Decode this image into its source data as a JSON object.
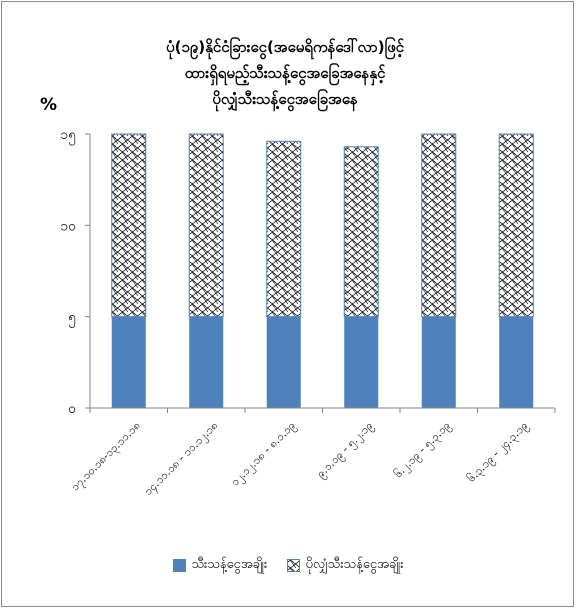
{
  "chart_data": {
    "type": "bar",
    "stacked": true,
    "title_lines": [
      "ပုံ(၁၉)နိုင်ငံခြားငွေ(အမေရိကန်ဒေါ်လာ)ဖြင့်",
      "ထားရှိရမည့်သီးသန့်ငွေအခြေအနေနှင့်",
      "ပိုလျှံသီးသန့်ငွေအခြေအနေ"
    ],
    "ylabel": "%",
    "ylim": [
      0,
      15
    ],
    "yticks": [
      "၀",
      "၅",
      "၁၀",
      "၁၅"
    ],
    "ytick_values": [
      0,
      5,
      10,
      15
    ],
    "categories": [
      "၁၇.၁၀.၁၈-၁၃.၁၁.၁၈",
      "၁၄.၁၁.၁၈ - ၁၁.၁၂.၁၈",
      "၁၂.၁၂.၁၈ - ၈.၁.၁၉",
      "၉.၁.၁၉ - ၅.၂.၁၉",
      "၆.၂.၁၉ - ၅.၃.၁၉",
      "၆.၃.၁၉ - ၂၄.၃.၁၉"
    ],
    "series": [
      {
        "name": "သီးသန့်ငွေအချိုး",
        "color": "#4f81bd",
        "fill": "solid",
        "values": [
          5,
          5,
          5,
          5,
          5,
          5
        ]
      },
      {
        "name": "ပိုလျှံသီးသန့်ငွေအချိုး",
        "color": "#4f81bd",
        "fill": "pattern",
        "values": [
          10.0,
          10.0,
          9.6,
          9.3,
          10.0,
          10.0
        ]
      }
    ],
    "grid": false,
    "legend_position": "bottom"
  }
}
